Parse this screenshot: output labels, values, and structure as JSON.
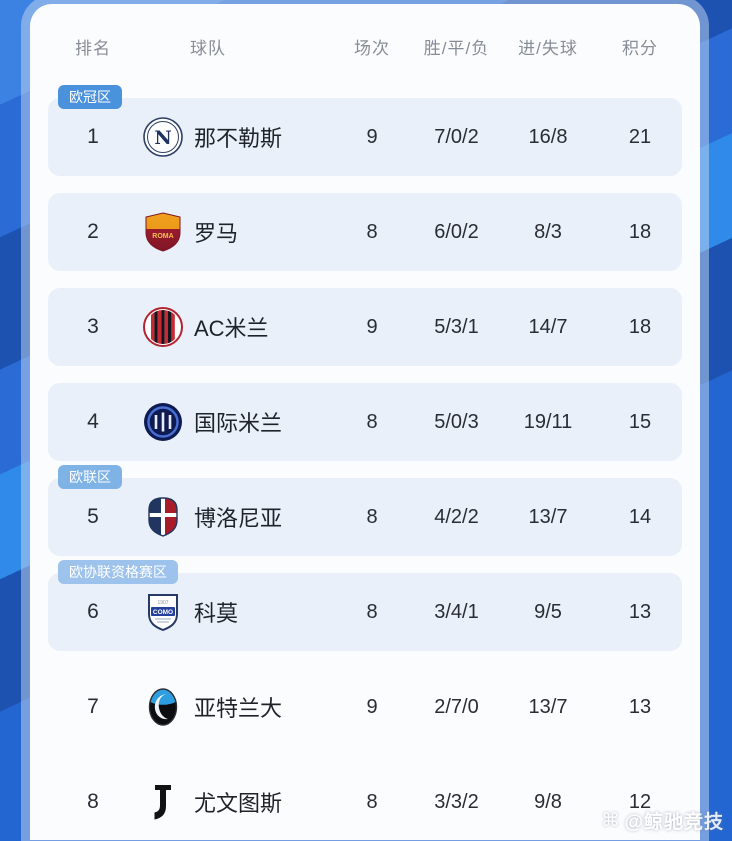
{
  "chart_data": {
    "type": "table",
    "title": "",
    "columns": [
      "排名",
      "球队",
      "场次",
      "胜/平/负",
      "进/失球",
      "积分"
    ],
    "zone_colors": {
      "champions": "#4b92dc",
      "europa": "#7fb2e5",
      "conference": "#9dc2ec"
    },
    "zone_badges": [
      {
        "key": "champions",
        "label": "欧冠区",
        "before_rank": 1
      },
      {
        "key": "europa",
        "label": "欧联区",
        "before_rank": 5
      },
      {
        "key": "conference",
        "label": "欧协联资格赛区",
        "before_rank": 6
      }
    ],
    "rows": [
      {
        "rank": "1",
        "team": "那不勒斯",
        "logo": "napoli",
        "played": "9",
        "wdl": "7/0/2",
        "goals": "16/8",
        "points": "21",
        "zone": "champions",
        "zone_label": "欧冠区",
        "highlighted": true
      },
      {
        "rank": "2",
        "team": "罗马",
        "logo": "roma",
        "played": "8",
        "wdl": "6/0/2",
        "goals": "8/3",
        "points": "18",
        "highlighted": true
      },
      {
        "rank": "3",
        "team": "AC米兰",
        "logo": "acmilan",
        "played": "9",
        "wdl": "5/3/1",
        "goals": "14/7",
        "points": "18",
        "highlighted": true
      },
      {
        "rank": "4",
        "team": "国际米兰",
        "logo": "inter",
        "played": "8",
        "wdl": "5/0/3",
        "goals": "19/11",
        "points": "15",
        "highlighted": true
      },
      {
        "rank": "5",
        "team": "博洛尼亚",
        "logo": "bologna",
        "played": "8",
        "wdl": "4/2/2",
        "goals": "13/7",
        "points": "14",
        "zone": "europa",
        "zone_label": "欧联区",
        "highlighted": true
      },
      {
        "rank": "6",
        "team": "科莫",
        "logo": "como",
        "played": "8",
        "wdl": "3/4/1",
        "goals": "9/5",
        "points": "13",
        "zone": "conference",
        "zone_label": "欧协联资格赛区",
        "highlighted": true
      },
      {
        "rank": "7",
        "team": "亚特兰大",
        "logo": "atalanta",
        "played": "9",
        "wdl": "2/7/0",
        "goals": "13/7",
        "points": "13",
        "highlighted": false
      },
      {
        "rank": "8",
        "team": "尤文图斯",
        "logo": "juventus",
        "played": "8",
        "wdl": "3/3/2",
        "goals": "9/8",
        "points": "12",
        "highlighted": false
      }
    ]
  },
  "colors": {
    "background_blue": "#2365d0",
    "stripe_dark": "#1d52b0",
    "stripe_light": "#2f8ae9",
    "card": "#fbfcfd",
    "row_highlight": "#e9f0f9",
    "header_text": "#878d98",
    "body_text": "#2a2d33"
  },
  "watermark": {
    "icon": "brand-knot-icon",
    "icon_glyph": "⌘",
    "text": "@鲸驰竞技"
  }
}
